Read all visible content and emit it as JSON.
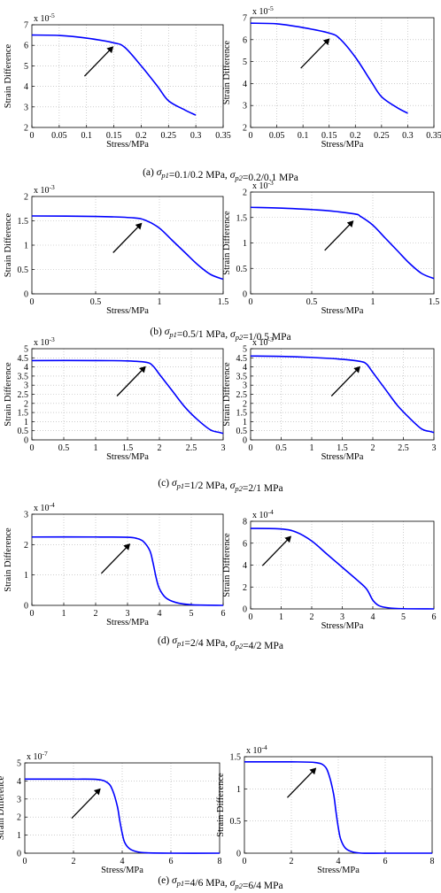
{
  "panel_captions": [
    {
      "label": "(a)",
      "text": "σp1=0.1/0.2 MPa, σp2=0.2/0.1 MPa"
    },
    {
      "label": "(b)",
      "text": "σp1=0.5/1 MPa, σp2=1/0.5 MPa"
    },
    {
      "label": "(c)",
      "text": "σp1=1/2 MPa, σp2=2/1 MPa"
    },
    {
      "label": "(d)",
      "text": "σp1=2/4 MPa, σp2=4/2 MPa"
    },
    {
      "label": "(e)",
      "text": "σp1=4/6 MPa, σp2=6/4 MPa"
    }
  ],
  "colors": {
    "line": "#0000ff",
    "axes": "#000000",
    "grid": "#b0b0b0",
    "arrow": "#000000"
  },
  "chart_data": [
    {
      "type": "line",
      "xlabel": "Stress/MPa",
      "ylabel": "Strain Difference",
      "multiplier": "x 10-5",
      "xlim": [
        0,
        0.35
      ],
      "ylim": [
        2,
        7
      ],
      "xticks": [
        "0",
        "0.05",
        "0.1",
        "0.15",
        "0.2",
        "0.25",
        "0.3",
        "0.35"
      ],
      "yticks": [
        "2",
        "3",
        "4",
        "5",
        "6",
        "7"
      ],
      "grid": true,
      "x": [
        0,
        0.05,
        0.1,
        0.15,
        0.17,
        0.2,
        0.23,
        0.25,
        0.28,
        0.3
      ],
      "y": [
        6.5,
        6.48,
        6.35,
        6.12,
        5.9,
        5.0,
        4.0,
        3.3,
        2.85,
        2.6
      ],
      "arrow_target": [
        0.153,
        6.05
      ]
    },
    {
      "type": "line",
      "xlabel": "Stress/MPa",
      "ylabel": "Strain Difference",
      "multiplier": "x 10-5",
      "xlim": [
        0,
        0.35
      ],
      "ylim": [
        2,
        7
      ],
      "xticks": [
        "0",
        "0.05",
        "0.1",
        "0.15",
        "0.2",
        "0.25",
        "0.3",
        "0.35"
      ],
      "yticks": [
        "2",
        "3",
        "4",
        "5",
        "6",
        "7"
      ],
      "grid": true,
      "x": [
        0,
        0.05,
        0.1,
        0.15,
        0.17,
        0.2,
        0.23,
        0.25,
        0.28,
        0.3
      ],
      "y": [
        6.75,
        6.72,
        6.55,
        6.3,
        6.05,
        5.2,
        4.1,
        3.4,
        2.9,
        2.65
      ],
      "arrow_target": [
        0.155,
        6.15
      ]
    },
    {
      "type": "line",
      "xlabel": "Stress/MPa",
      "ylabel": "Strain Difference",
      "multiplier": "x 10-3",
      "xlim": [
        0,
        1.5
      ],
      "ylim": [
        0,
        2
      ],
      "xticks": [
        "0",
        "0.5",
        "1",
        "1.5"
      ],
      "yticks": [
        "0",
        "0.5",
        "1",
        "1.5",
        "2"
      ],
      "grid": true,
      "x": [
        0,
        0.5,
        0.8,
        0.9,
        1.0,
        1.1,
        1.2,
        1.3,
        1.4,
        1.5
      ],
      "y": [
        1.6,
        1.59,
        1.56,
        1.5,
        1.35,
        1.1,
        0.85,
        0.6,
        0.4,
        0.3
      ],
      "arrow_target": [
        0.88,
        1.5
      ]
    },
    {
      "type": "line",
      "xlabel": "Stress/MPa",
      "ylabel": "Strain Difference",
      "multiplier": "x 10-3",
      "xlim": [
        0,
        1.5
      ],
      "ylim": [
        0,
        2
      ],
      "xticks": [
        "0",
        "0.5",
        "1",
        "1.5"
      ],
      "yticks": [
        "0",
        "0.5",
        "1",
        "1.5",
        "2"
      ],
      "grid": true,
      "x": [
        0,
        0.3,
        0.6,
        0.85,
        0.9,
        1.0,
        1.1,
        1.2,
        1.3,
        1.4,
        1.5
      ],
      "y": [
        1.7,
        1.68,
        1.64,
        1.57,
        1.52,
        1.35,
        1.1,
        0.85,
        0.6,
        0.4,
        0.3
      ],
      "arrow_target": [
        0.86,
        1.48
      ]
    },
    {
      "type": "line",
      "xlabel": "Stress/MPa",
      "ylabel": "Strain Difference",
      "multiplier": "x 10-3",
      "xlim": [
        0,
        3
      ],
      "ylim": [
        0,
        5
      ],
      "xticks": [
        "0",
        "0.5",
        "1",
        "1.5",
        "2",
        "2.5",
        "3"
      ],
      "yticks": [
        "0",
        "0.5",
        "1",
        "1.5",
        "2",
        "2.5",
        "3",
        "3.5",
        "4",
        "4.5",
        "5"
      ],
      "grid": true,
      "x": [
        0,
        1,
        1.5,
        1.8,
        1.9,
        2.0,
        2.2,
        2.4,
        2.6,
        2.8,
        2.95,
        3.0
      ],
      "y": [
        4.35,
        4.35,
        4.33,
        4.25,
        4.05,
        3.6,
        2.7,
        1.8,
        1.1,
        0.55,
        0.4,
        0.35
      ],
      "arrow_target": [
        1.82,
        4.15
      ]
    },
    {
      "type": "line",
      "xlabel": "Stress/MPa",
      "ylabel": "Strain Difference",
      "multiplier": "x 10-3",
      "xlim": [
        0,
        3
      ],
      "ylim": [
        0,
        5
      ],
      "xticks": [
        "0",
        "0.5",
        "1",
        "1.5",
        "2",
        "2.5",
        "3"
      ],
      "yticks": [
        "0",
        "0.5",
        "1",
        "1.5",
        "2",
        "2.5",
        "3",
        "3.5",
        "4",
        "4.5",
        "5"
      ],
      "grid": true,
      "x": [
        0,
        0.5,
        1.0,
        1.5,
        1.8,
        1.9,
        2.0,
        2.2,
        2.4,
        2.6,
        2.8,
        2.95,
        3.0
      ],
      "y": [
        4.6,
        4.58,
        4.52,
        4.42,
        4.3,
        4.15,
        3.7,
        2.8,
        1.9,
        1.2,
        0.6,
        0.45,
        0.4
      ],
      "arrow_target": [
        1.83,
        4.15
      ]
    },
    {
      "type": "line",
      "xlabel": "Stress/MPa",
      "ylabel": "Strain Difference",
      "multiplier": "x 10-4",
      "xlim": [
        0,
        6
      ],
      "ylim": [
        0,
        3
      ],
      "xticks": [
        "0",
        "1",
        "2",
        "3",
        "4",
        "5",
        "6"
      ],
      "yticks": [
        "0",
        "1",
        "2",
        "3"
      ],
      "grid": true,
      "x": [
        0,
        2,
        3,
        3.3,
        3.5,
        3.7,
        3.8,
        3.9,
        4.0,
        4.2,
        4.5,
        5.0,
        6.0
      ],
      "y": [
        2.25,
        2.25,
        2.24,
        2.2,
        2.1,
        1.8,
        1.4,
        0.9,
        0.55,
        0.25,
        0.1,
        0.02,
        0.0
      ],
      "arrow_target": [
        3.15,
        2.1
      ]
    },
    {
      "type": "line",
      "xlabel": "Stress/MPa",
      "ylabel": "Strain Difference",
      "multiplier": "x 10-4",
      "xlim": [
        0,
        6
      ],
      "ylim": [
        0,
        8
      ],
      "xticks": [
        "0",
        "1",
        "2",
        "3",
        "4",
        "5",
        "6"
      ],
      "yticks": [
        "0",
        "2",
        "4",
        "6",
        "8"
      ],
      "grid": true,
      "x": [
        0,
        1,
        1.5,
        2,
        2.5,
        3,
        3.5,
        3.8,
        4.0,
        4.2,
        4.5,
        5,
        6
      ],
      "y": [
        7.35,
        7.3,
        7.0,
        6.2,
        5.0,
        3.8,
        2.6,
        1.8,
        0.8,
        0.3,
        0.1,
        0.02,
        0.0
      ],
      "arrow_target": [
        1.4,
        6.85
      ]
    },
    {
      "type": "line",
      "xlabel": "Stress/MPa",
      "ylabel": "Strain Difference",
      "multiplier": "x 10-7",
      "xlim": [
        0,
        8
      ],
      "ylim": [
        0,
        5
      ],
      "xticks": [
        "0",
        "2",
        "4",
        "6",
        "8"
      ],
      "yticks": [
        "0",
        "1",
        "2",
        "3",
        "4",
        "5"
      ],
      "grid": true,
      "x": [
        0,
        2,
        3,
        3.4,
        3.6,
        3.8,
        3.9,
        4.0,
        4.1,
        4.3,
        4.6,
        5,
        6,
        8
      ],
      "y": [
        4.1,
        4.1,
        4.08,
        3.9,
        3.5,
        2.6,
        1.8,
        1.1,
        0.6,
        0.25,
        0.08,
        0.02,
        0.0,
        0.0
      ],
      "arrow_target": [
        3.2,
        3.7
      ]
    },
    {
      "type": "line",
      "xlabel": "Stress/MPa",
      "ylabel": "Strain Difference",
      "multiplier": "x 10-4",
      "xlim": [
        0,
        8
      ],
      "ylim": [
        0,
        1.5
      ],
      "xticks": [
        "0",
        "2",
        "4",
        "6",
        "8"
      ],
      "yticks": [
        "0",
        "0.5",
        "1",
        "1.5"
      ],
      "grid": true,
      "x": [
        0,
        2,
        3,
        3.4,
        3.6,
        3.8,
        3.9,
        4.0,
        4.1,
        4.3,
        4.6,
        5,
        6,
        8
      ],
      "y": [
        1.42,
        1.42,
        1.41,
        1.36,
        1.22,
        0.92,
        0.65,
        0.4,
        0.22,
        0.08,
        0.02,
        0.0,
        0.0,
        0.0
      ],
      "arrow_target": [
        3.15,
        1.36
      ]
    }
  ]
}
